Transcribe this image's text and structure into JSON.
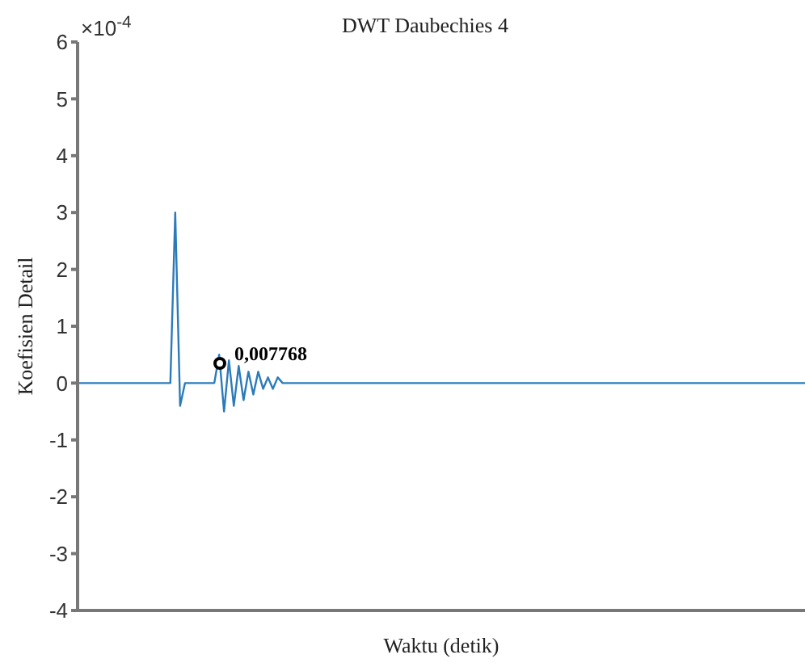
{
  "chart_data": {
    "type": "line",
    "title": "DWT Daubechies 4",
    "xlabel": "Waktu (detik)",
    "ylabel": "Koefisien Detail",
    "categories": [
      null,
      null,
      null,
      null,
      null,
      null,
      null,
      null,
      null,
      null,
      null,
      null,
      null,
      null,
      null,
      null,
      null,
      null,
      null,
      null,
      null,
      null,
      null,
      null,
      null,
      null,
      null,
      null,
      null,
      null,
      null,
      null,
      null,
      null,
      null,
      null,
      null,
      null,
      null,
      null,
      null,
      null,
      null,
      null,
      null,
      null,
      null,
      null,
      null,
      null,
      null,
      null,
      null,
      null,
      null,
      null,
      null,
      null,
      null,
      null,
      null,
      null,
      null,
      null,
      null,
      null,
      null,
      null,
      null,
      null,
      null,
      null,
      null,
      null,
      null,
      null,
      null,
      null,
      null,
      null,
      null,
      null,
      null,
      null,
      null,
      null,
      null,
      null,
      null,
      null,
      null,
      null,
      null,
      null,
      null,
      null,
      null,
      null,
      null,
      null,
      null,
      null,
      null,
      null,
      null,
      null,
      null,
      null,
      null,
      null,
      null,
      null,
      null,
      null,
      null,
      null,
      null,
      null,
      null,
      null,
      null,
      null,
      null,
      null,
      null,
      null,
      null,
      null,
      null,
      null,
      null,
      null,
      null,
      null,
      null,
      null,
      null,
      null,
      null,
      null,
      null,
      null,
      null,
      null,
      null,
      null,
      null,
      null,
      null,
      null
    ],
    "series": [
      {
        "color": "#2b7bba",
        "values": [
          0,
          0,
          0,
          0,
          0,
          0,
          0,
          0,
          0,
          0,
          0,
          0,
          0,
          0,
          0,
          0,
          0,
          0,
          0,
          0,
          3,
          -0.4,
          0,
          0,
          0,
          0,
          0,
          0,
          0,
          0.5,
          -0.5,
          0.4,
          -0.4,
          0.3,
          -0.3,
          0.2,
          -0.2,
          0.2,
          -0.1,
          0.1,
          -0.1,
          0.1,
          0,
          0,
          0,
          0,
          0,
          0,
          0,
          0,
          0,
          0,
          0,
          0,
          0,
          0,
          0,
          0,
          0,
          0,
          0,
          0,
          0,
          0,
          0,
          0,
          0,
          0,
          0,
          0,
          0,
          0,
          0,
          0,
          0,
          0,
          0,
          0,
          0,
          0,
          0,
          0,
          0,
          0,
          0,
          0,
          0,
          0,
          0,
          0,
          0,
          0,
          0,
          0,
          0,
          0,
          0,
          0,
          0,
          0,
          0,
          0,
          0,
          0,
          0,
          0,
          0,
          0,
          0,
          0,
          0,
          0,
          0,
          0,
          0,
          0,
          0,
          0,
          0,
          0,
          0,
          0,
          0,
          0,
          0,
          0,
          0,
          0,
          0,
          0,
          0,
          0,
          0,
          0,
          0,
          0,
          0,
          0,
          0,
          0,
          0,
          0,
          0,
          0,
          0,
          0,
          0,
          0,
          0,
          0
        ]
      }
    ],
    "ylim": [
      -4,
      6
    ],
    "yticks": [
      -4,
      -3,
      -2,
      -1,
      0,
      1,
      2,
      3,
      4,
      5,
      6
    ],
    "annotations": [
      "×10$^{-4}$",
      "0,007768"
    ],
    "tick_labels": "y",
    "grid": false,
    "legend": false,
    "marker": "none",
    "line_style": "solid"
  }
}
